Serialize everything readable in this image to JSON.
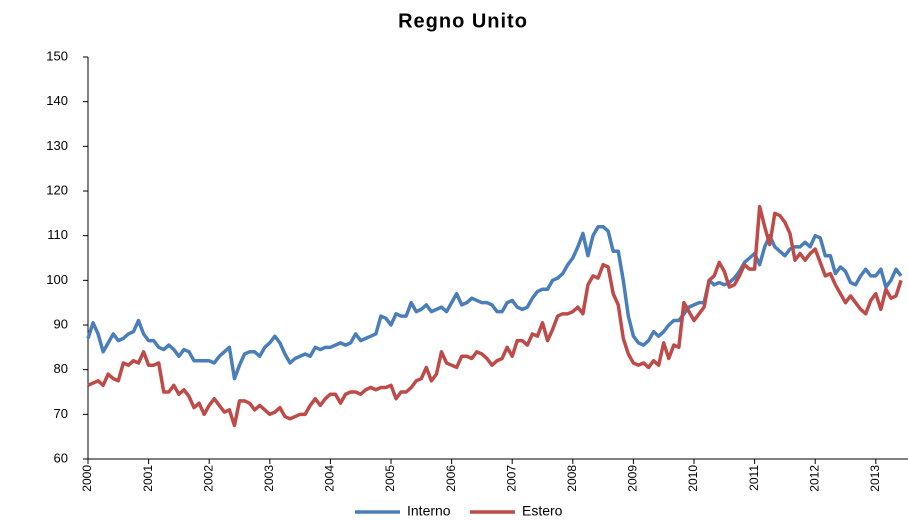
{
  "chart_data": {
    "type": "line",
    "title": "Regno Unito",
    "categories": [
      "2000",
      null,
      null,
      null,
      null,
      null,
      null,
      null,
      null,
      null,
      null,
      null,
      "2001",
      null,
      null,
      null,
      null,
      null,
      null,
      null,
      null,
      null,
      null,
      null,
      "2002",
      null,
      null,
      null,
      null,
      null,
      null,
      null,
      null,
      null,
      null,
      null,
      "2003",
      null,
      null,
      null,
      null,
      null,
      null,
      null,
      null,
      null,
      null,
      null,
      "2004",
      null,
      null,
      null,
      null,
      null,
      null,
      null,
      null,
      null,
      null,
      null,
      "2005",
      null,
      null,
      null,
      null,
      null,
      null,
      null,
      null,
      null,
      null,
      null,
      "2006",
      null,
      null,
      null,
      null,
      null,
      null,
      null,
      null,
      null,
      null,
      null,
      "2007",
      null,
      null,
      null,
      null,
      null,
      null,
      null,
      null,
      null,
      null,
      null,
      "2008",
      null,
      null,
      null,
      null,
      null,
      null,
      null,
      null,
      null,
      null,
      null,
      "2009",
      null,
      null,
      null,
      null,
      null,
      null,
      null,
      null,
      null,
      null,
      null,
      "2010",
      null,
      null,
      null,
      null,
      null,
      null,
      null,
      null,
      null,
      null,
      null,
      "2011",
      null,
      null,
      null,
      null,
      null,
      null,
      null,
      null,
      null,
      null,
      null,
      "2012",
      null,
      null,
      null,
      null,
      null,
      null,
      null,
      null,
      null,
      null,
      null,
      "2013",
      null,
      null,
      null,
      null,
      null
    ],
    "series": [
      {
        "name": "Interno",
        "color": "#4a7ebb",
        "values": [
          87,
          90.5,
          88,
          84,
          86,
          88,
          86.5,
          87,
          88,
          88.5,
          91,
          88,
          86.5,
          86.5,
          85,
          84.5,
          85.5,
          84.5,
          83,
          84.5,
          84,
          82,
          82,
          82,
          82,
          81.5,
          83,
          84,
          85,
          78,
          81,
          83.5,
          84,
          84,
          83,
          85,
          86,
          87.5,
          86,
          83.5,
          81.5,
          82.5,
          83,
          83.5,
          83,
          85,
          84.5,
          85,
          85,
          85.5,
          86,
          85.5,
          86,
          88,
          86.5,
          87,
          87.5,
          88,
          92,
          91.5,
          90,
          92.5,
          92,
          92,
          95,
          93,
          93.5,
          94.5,
          93,
          93.5,
          94,
          93,
          95,
          97,
          94.5,
          95,
          96,
          95.5,
          95,
          95,
          94.5,
          93,
          93,
          95,
          95.5,
          94,
          93.5,
          94,
          96,
          97.5,
          98,
          98,
          100,
          100.5,
          101.5,
          103.5,
          105,
          107.5,
          110.5,
          105.5,
          110,
          112,
          112,
          111,
          106.5,
          106.5,
          100,
          92,
          87.5,
          86,
          85.5,
          86.5,
          88.5,
          87.5,
          88.5,
          90,
          91,
          91,
          92.5,
          94,
          94.5,
          95,
          95,
          100,
          99,
          99.5,
          99,
          99.5,
          100.5,
          102,
          104,
          105,
          106,
          103.5,
          107.5,
          110,
          107.5,
          106.5,
          105.5,
          107,
          107.5,
          107.5,
          108.5,
          107.5,
          110,
          109.5,
          105.5,
          105.5,
          101.5,
          103,
          102,
          99.5,
          99,
          101,
          102.5,
          101,
          101,
          102.5,
          98.5,
          100,
          102.5,
          101
        ]
      },
      {
        "name": "Estero",
        "color": "#be4b48",
        "values": [
          76.5,
          77,
          77.5,
          76.5,
          79,
          78,
          77.5,
          81.5,
          81,
          82,
          81.5,
          84,
          81,
          81,
          81.5,
          75,
          75,
          76.5,
          74.5,
          75.5,
          74,
          71.5,
          72.5,
          70,
          72,
          73.5,
          72,
          70.5,
          71,
          67.5,
          73,
          73,
          72.5,
          71,
          72,
          71,
          70,
          70.5,
          71.5,
          69.5,
          69,
          69.5,
          70,
          70,
          72,
          73.5,
          72,
          73.5,
          74.5,
          74.5,
          72.5,
          74.5,
          75,
          75,
          74.5,
          75.5,
          76,
          75.5,
          76,
          76,
          76.5,
          73.5,
          75,
          75,
          76,
          77.5,
          78,
          80.5,
          77.5,
          79,
          84,
          81.5,
          81,
          80.5,
          83,
          83,
          82.5,
          84,
          83.5,
          82.5,
          81,
          82,
          82.5,
          85,
          83,
          86.5,
          86.5,
          85.5,
          88,
          87.5,
          90.5,
          86.5,
          89,
          92,
          92.5,
          92.5,
          93,
          94,
          92.5,
          99,
          101,
          100.5,
          103.5,
          103,
          97,
          94.5,
          87,
          83.5,
          81.5,
          81,
          81.5,
          80.5,
          82,
          81,
          86,
          82.5,
          85.5,
          85,
          95,
          93,
          91,
          92.5,
          94,
          100,
          101,
          104,
          102,
          98.5,
          99,
          101,
          103.5,
          102.5,
          102.5,
          116.5,
          112,
          108,
          115,
          114.5,
          113,
          110.5,
          104.5,
          106,
          104.5,
          106,
          107,
          104,
          101,
          101.5,
          99,
          97,
          95,
          96.5,
          95,
          93.5,
          92.5,
          95.5,
          97,
          93.5,
          98,
          96,
          96.5,
          100
        ]
      }
    ],
    "ylim": [
      60,
      150
    ],
    "yticks": [
      60,
      70,
      80,
      90,
      100,
      110,
      120,
      130,
      140,
      150
    ],
    "legend": "bottom"
  }
}
